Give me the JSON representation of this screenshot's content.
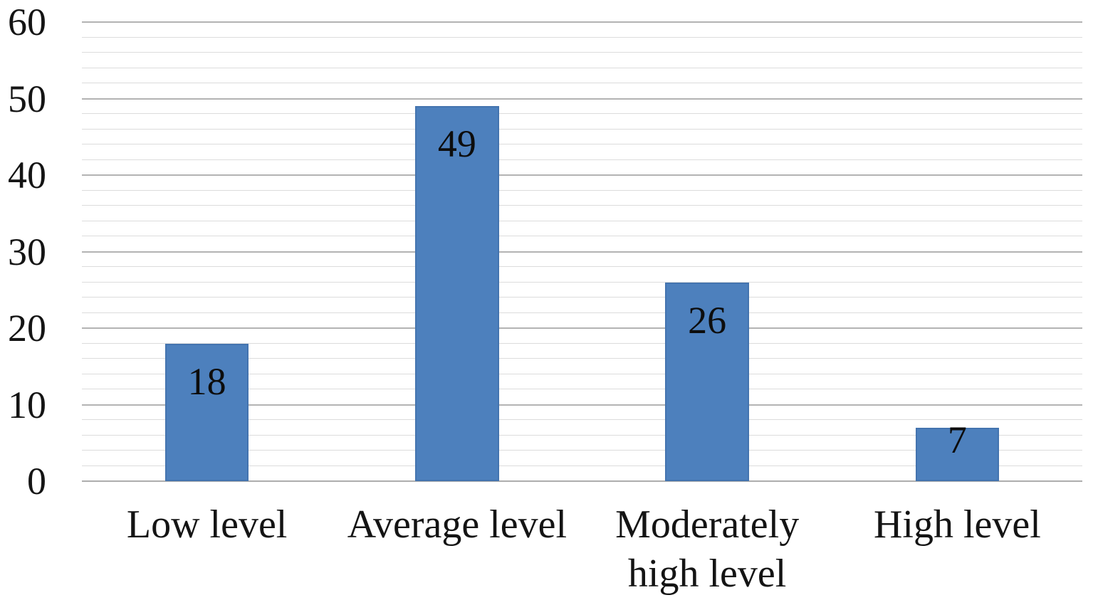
{
  "chart_data": {
    "type": "bar",
    "title": "",
    "xlabel": "",
    "ylabel": "",
    "categories": [
      "Low level",
      "Average level",
      "Moderately high level",
      "High level"
    ],
    "values": [
      18,
      49,
      26,
      7
    ],
    "data_labels": [
      "18",
      "49",
      "26",
      "7"
    ],
    "ylim": [
      0,
      60
    ],
    "ytick_major_step": 10,
    "ytick_minor_step": 2,
    "ytick_labels": [
      "0",
      "10",
      "20",
      "30",
      "40",
      "50",
      "60"
    ],
    "grid": "horizontal major and minor gridlines, no vertical gridlines",
    "legend": "none",
    "colors": {
      "bar_fill": "#4d80bd",
      "bar_border": "#4474af",
      "major_gridline": "#b3b3b3",
      "minor_gridline": "#dcdcdc",
      "axis_baseline": "#adadad",
      "text": "#141414",
      "background": "#ffffff"
    }
  }
}
